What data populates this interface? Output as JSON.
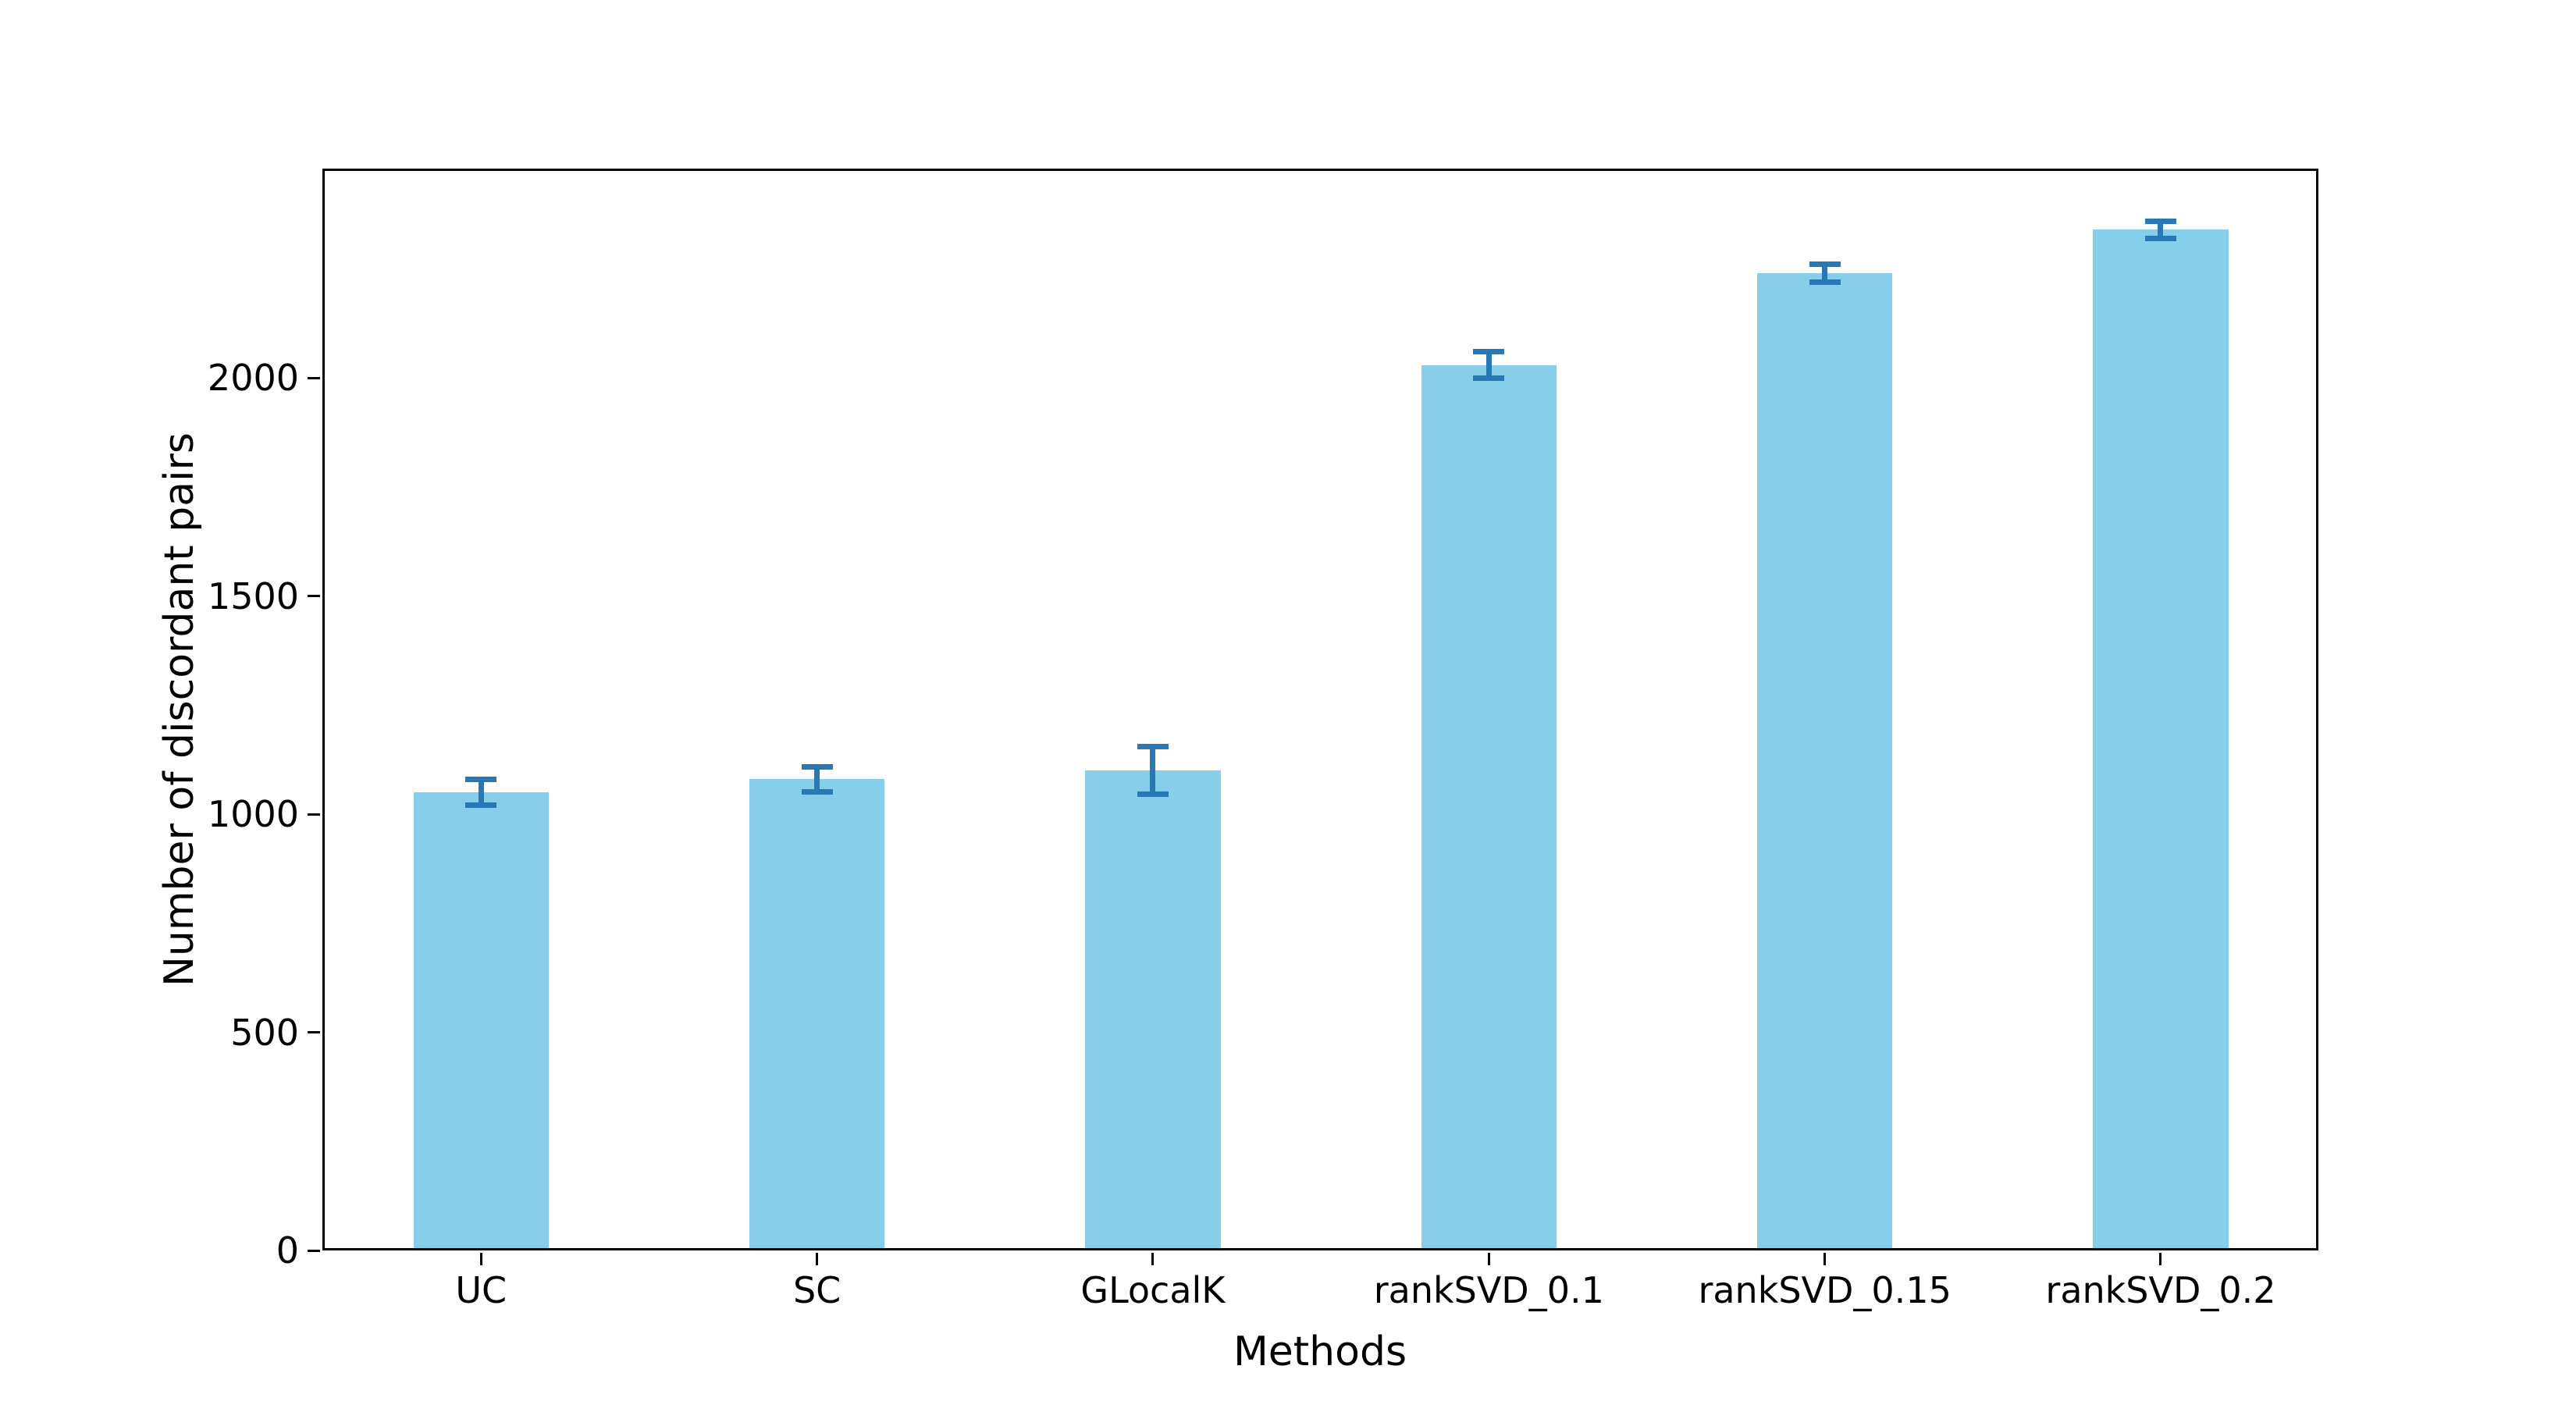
{
  "figure": {
    "background": "#ffffff"
  },
  "chart_data": {
    "type": "bar",
    "categories": [
      "UC",
      "SC",
      "GLocalK",
      "rankSVD_0.1",
      "rankSVD_0.15",
      "rankSVD_0.2"
    ],
    "values": [
      1050,
      1080,
      1100,
      2030,
      2240,
      2340
    ],
    "errors": [
      30,
      28,
      55,
      30,
      20,
      20
    ],
    "title": "",
    "xlabel": "Methods",
    "ylabel": "Number of discordant pairs",
    "yticks": [
      0,
      500,
      1000,
      1500,
      2000
    ],
    "ylim": [
      0,
      2480
    ],
    "bar_color": "#87CEEB",
    "error_color": "#2878B5",
    "axis_color": "#000000",
    "grid": false,
    "legend": null
  }
}
